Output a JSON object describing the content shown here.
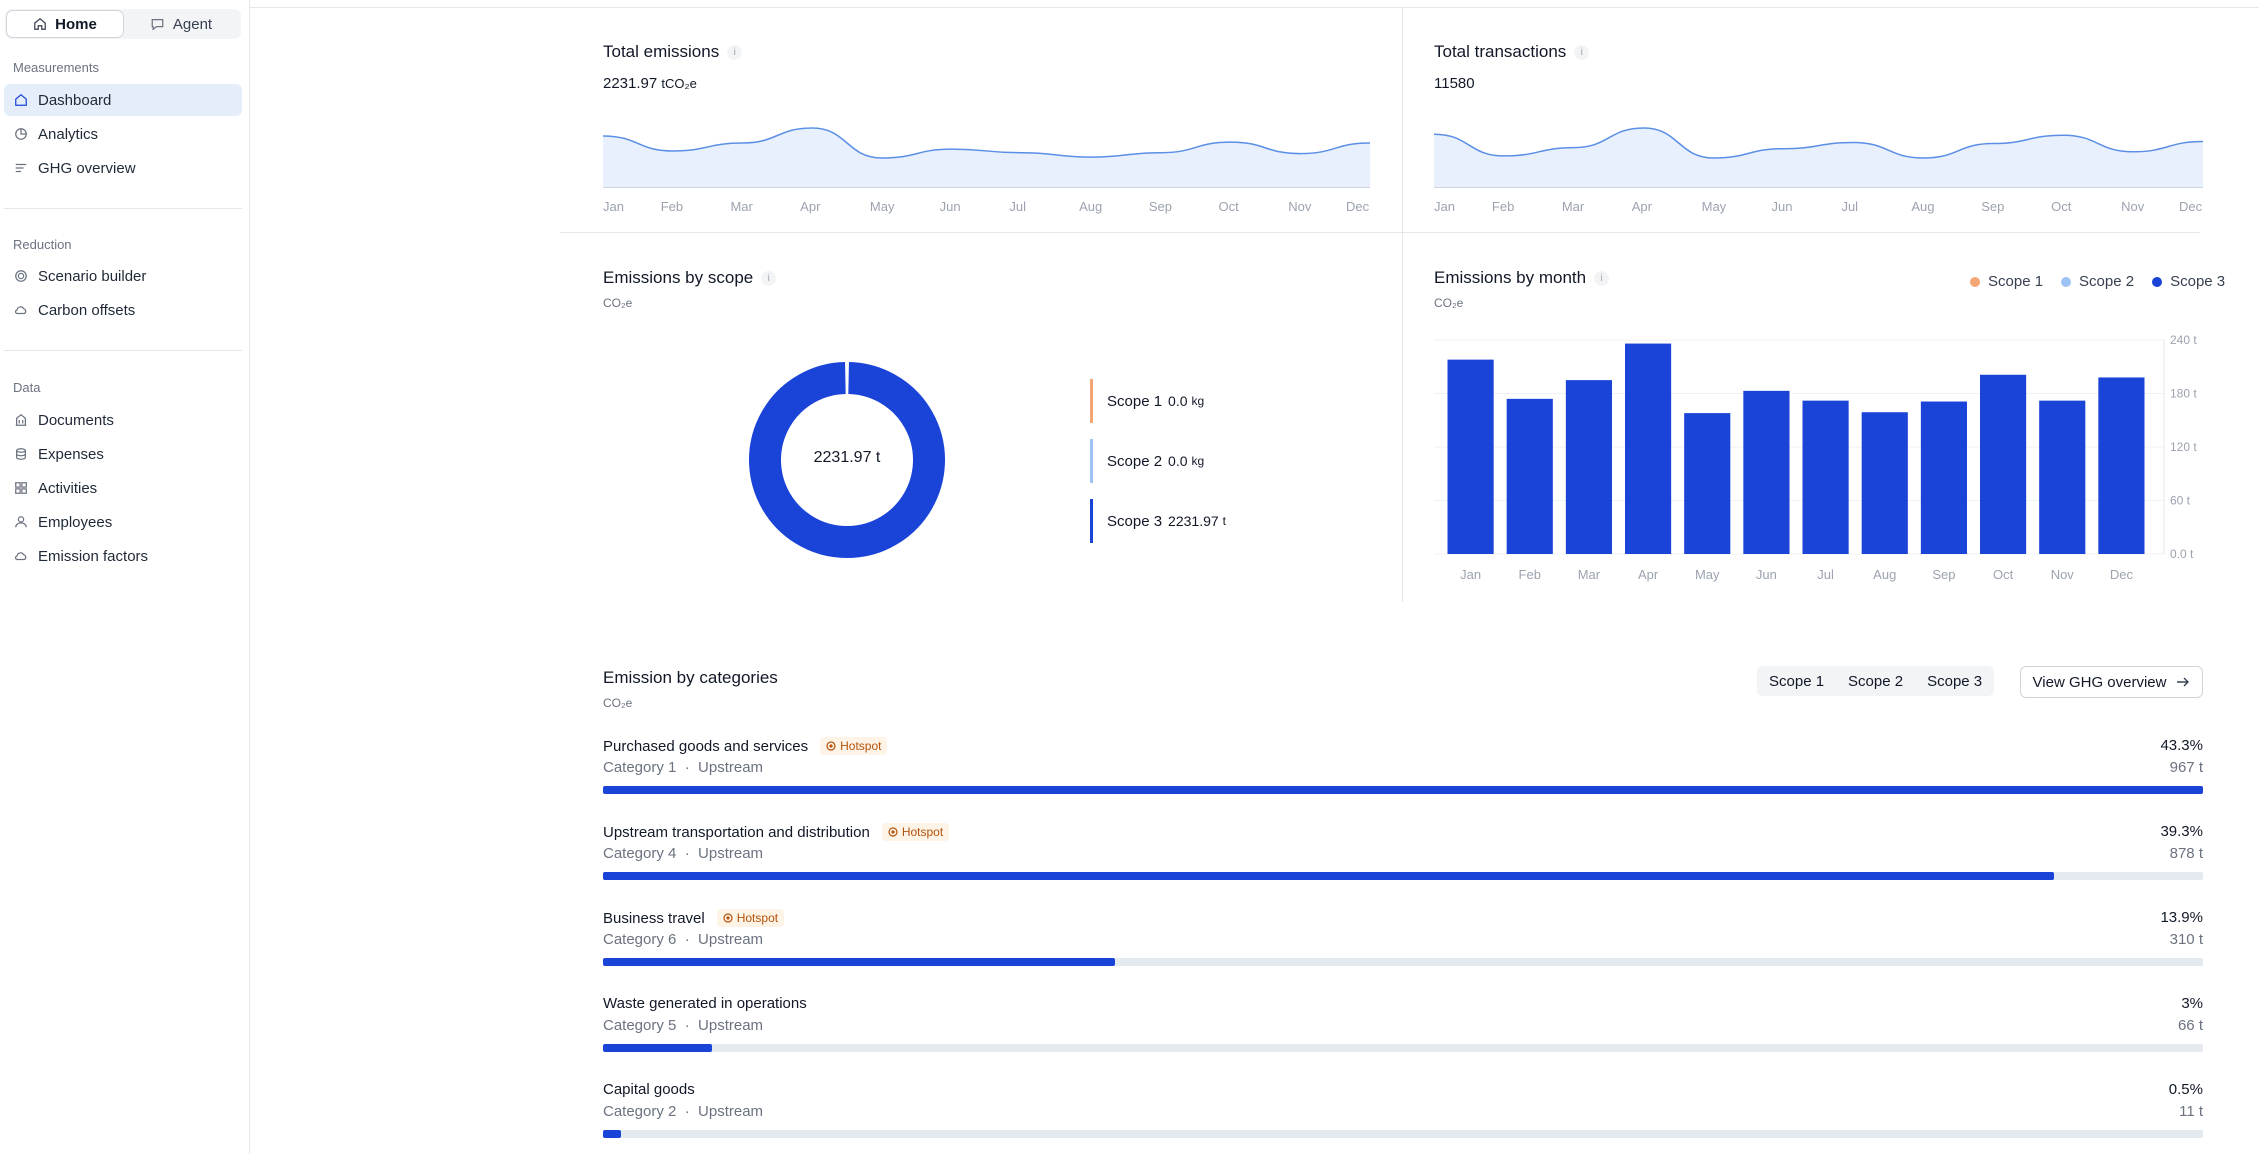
{
  "sidebar": {
    "toggle": {
      "home": "Home",
      "agent": "Agent"
    },
    "sections": [
      {
        "title": "Measurements",
        "items": [
          "Dashboard",
          "Analytics",
          "GHG overview"
        ]
      },
      {
        "title": "Reduction",
        "items": [
          "Scenario builder",
          "Carbon offsets"
        ]
      },
      {
        "title": "Data",
        "items": [
          "Documents",
          "Expenses",
          "Activities",
          "Employees",
          "Emission factors"
        ]
      }
    ],
    "active_item": "Dashboard"
  },
  "total_emissions": {
    "title": "Total emissions",
    "info": "i",
    "value": "2231.97",
    "unit": "tCO₂e",
    "months": [
      "Jan",
      "Feb",
      "Mar",
      "Apr",
      "May",
      "Jun",
      "Jul",
      "Aug",
      "Sep",
      "Oct",
      "Nov",
      "Dec"
    ]
  },
  "total_transactions": {
    "title": "Total transactions",
    "info": "i",
    "value": "11580",
    "months": [
      "Jan",
      "Feb",
      "Mar",
      "Apr",
      "May",
      "Jun",
      "Jul",
      "Aug",
      "Sep",
      "Oct",
      "Nov",
      "Dec"
    ]
  },
  "emissions_by_scope": {
    "title": "Emissions by scope",
    "info": "i",
    "unit": "CO₂e",
    "center_label": "2231.97 t",
    "items": [
      {
        "label": "Scope 1",
        "value": "0.0",
        "unit": "kg",
        "color": "#f4a574"
      },
      {
        "label": "Scope 2",
        "value": "0.0",
        "unit": "kg",
        "color": "#9dc3f6"
      },
      {
        "label": "Scope 3",
        "value": "2231.97",
        "unit": "t",
        "color": "#1a43d8"
      }
    ]
  },
  "emissions_by_month": {
    "title": "Emissions by month",
    "info": "i",
    "unit": "CO₂e",
    "legend": [
      {
        "label": "Scope 1",
        "color": "#f4a574"
      },
      {
        "label": "Scope 2",
        "color": "#9dc3f6"
      },
      {
        "label": "Scope 3",
        "color": "#1a43d8"
      }
    ],
    "y_ticks": [
      "240 t",
      "180 t",
      "120 t",
      "60 t",
      "0.0 t"
    ]
  },
  "categories_section": {
    "title": "Emission by categories",
    "unit": "CO₂e",
    "filters": [
      "Scope 1",
      "Scope 2",
      "Scope 3"
    ],
    "view_button": "View GHG overview",
    "hotspot_label": "Hotspot",
    "items": [
      {
        "name": "Purchased goods and services",
        "category": "Category 1",
        "direction": "Upstream",
        "percent": "43.3%",
        "amount": "967 t",
        "share": 1.0,
        "hotspot": true
      },
      {
        "name": "Upstream transportation and distribution",
        "category": "Category 4",
        "direction": "Upstream",
        "percent": "39.3%",
        "amount": "878 t",
        "share": 0.907,
        "hotspot": true
      },
      {
        "name": "Business travel",
        "category": "Category 6",
        "direction": "Upstream",
        "percent": "13.9%",
        "amount": "310 t",
        "share": 0.32,
        "hotspot": true
      },
      {
        "name": "Waste generated in operations",
        "category": "Category 5",
        "direction": "Upstream",
        "percent": "3%",
        "amount": "66 t",
        "share": 0.068,
        "hotspot": false
      },
      {
        "name": "Capital goods",
        "category": "Category 2",
        "direction": "Upstream",
        "percent": "0.5%",
        "amount": "11 t",
        "share": 0.011,
        "hotspot": false
      }
    ]
  },
  "chart_data": [
    {
      "type": "area",
      "categories": [
        "Jan",
        "Feb",
        "Mar",
        "Apr",
        "May",
        "Jun",
        "Jul",
        "Aug",
        "Sep",
        "Oct",
        "Nov",
        "Dec"
      ],
      "series": [
        {
          "values": [
            210,
            176,
            194,
            228,
            160,
            180,
            172,
            162,
            172,
            196,
            170,
            194
          ]
        }
      ],
      "grid": false
    },
    {
      "type": "area",
      "categories": [
        "Jan",
        "Feb",
        "Mar",
        "Apr",
        "May",
        "Jun",
        "Jul",
        "Aug",
        "Sep",
        "Oct",
        "Nov",
        "Dec"
      ],
      "series": [
        {
          "values": [
            1090,
            880,
            960,
            1150,
            860,
            950,
            1010,
            860,
            1000,
            1080,
            920,
            1020
          ]
        }
      ],
      "grid": false
    },
    {
      "type": "pie",
      "categories": [
        "Scope 1",
        "Scope 2",
        "Scope 3"
      ],
      "values": [
        0.0,
        0.0,
        2231.97
      ],
      "title": "Emissions by scope"
    },
    {
      "type": "bar",
      "categories": [
        "Jan",
        "Feb",
        "Mar",
        "Apr",
        "May",
        "Jun",
        "Jul",
        "Aug",
        "Sep",
        "Oct",
        "Nov",
        "Dec"
      ],
      "series": [
        {
          "name": "Scope 3",
          "values": [
            218,
            174,
            195,
            236,
            158,
            183,
            172,
            159,
            171,
            201,
            172,
            198
          ]
        }
      ],
      "title": "Emissions by month",
      "ylim": [
        0,
        240
      ],
      "y_ticks": [
        "240 t",
        "180 t",
        "120 t",
        "60 t",
        "0.0 t"
      ],
      "legend": "top-right",
      "grid": true
    }
  ]
}
